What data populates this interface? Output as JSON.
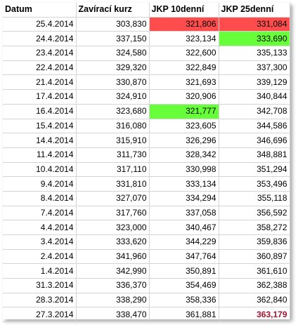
{
  "colors": {
    "red_fill": "#ff4d4d",
    "green_fill": "#66ff3a",
    "bold_red_text": "#a0152e",
    "gridline": "#d4d4d4"
  },
  "headers": [
    "Datum",
    "Zavírací kurz",
    "JKP 10denní",
    "JKP 25denní"
  ],
  "rows": [
    [
      "25.4.2014",
      "303,830",
      "321,806",
      "331,084"
    ],
    [
      "24.4.2014",
      "337,150",
      "323,134",
      "333,690"
    ],
    [
      "23.4.2014",
      "324,580",
      "322,600",
      "335,133"
    ],
    [
      "22.4.2014",
      "329,320",
      "322,849",
      "337,300"
    ],
    [
      "21.4.2014",
      "330,870",
      "321,693",
      "339,129"
    ],
    [
      "17.4.2014",
      "324,910",
      "320,906",
      "340,844"
    ],
    [
      "16.4.2014",
      "323,680",
      "321,777",
      "342,708"
    ],
    [
      "15.4.2014",
      "316,080",
      "323,605",
      "344,586"
    ],
    [
      "14.4.2014",
      "315,910",
      "326,296",
      "346,696"
    ],
    [
      "11.4.2014",
      "311,730",
      "328,342",
      "348,881"
    ],
    [
      "10.4.2014",
      "317,110",
      "330,998",
      "351,294"
    ],
    [
      "9.4.2014",
      "331,810",
      "333,134",
      "353,496"
    ],
    [
      "8.4.2014",
      "327,070",
      "334,294",
      "355,118"
    ],
    [
      "7.4.2014",
      "317,760",
      "337,058",
      "356,592"
    ],
    [
      "4.4.2014",
      "323,000",
      "340,467",
      "358,272"
    ],
    [
      "3.4.2014",
      "333,620",
      "344,229",
      "359,836"
    ],
    [
      "2.4.2014",
      "341,960",
      "347,764",
      "360,897"
    ],
    [
      "1.4.2014",
      "342,990",
      "350,891",
      "361,610"
    ],
    [
      "31.3.2014",
      "336,370",
      "354,469",
      "362,388"
    ],
    [
      "28.3.2014",
      "338,290",
      "358,336",
      "362,840"
    ],
    [
      "27.3.2014",
      "338,470",
      "361,881",
      "363,179"
    ]
  ]
}
